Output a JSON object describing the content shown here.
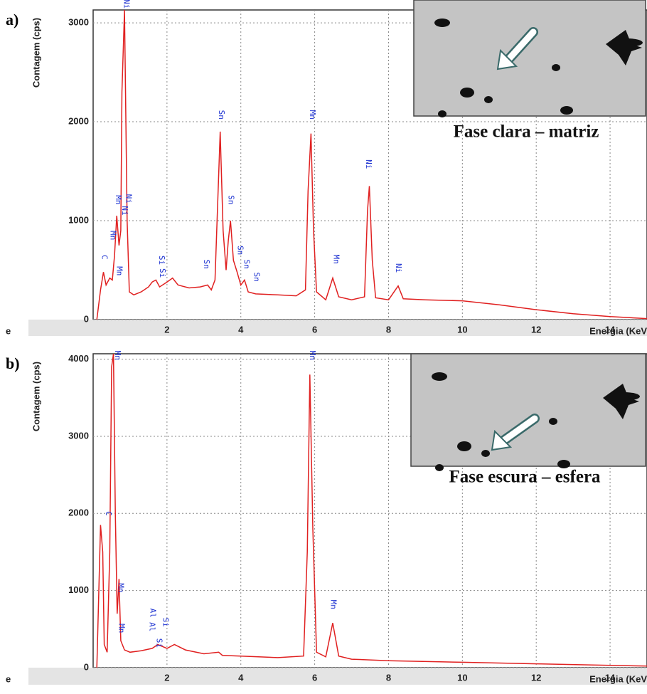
{
  "chart_data": [
    {
      "type": "line",
      "panel_label": "a)",
      "y_label": "Contagem (cps)",
      "x_label": "Energia (KeV",
      "corner_label": "e",
      "inset_caption": "Fase clara – matriz",
      "color": "#e02020",
      "grid": true,
      "xlim": [
        0,
        15
      ],
      "ylim": [
        0,
        3130
      ],
      "xticks": [
        2,
        4,
        6,
        8,
        10,
        12,
        14
      ],
      "yticks": [
        0,
        1000,
        2000,
        3000
      ],
      "x": [
        0.1,
        0.2,
        0.28,
        0.35,
        0.45,
        0.52,
        0.58,
        0.64,
        0.7,
        0.75,
        0.78,
        0.85,
        0.92,
        0.98,
        1.1,
        1.3,
        1.5,
        1.6,
        1.7,
        1.8,
        2.0,
        2.15,
        2.3,
        2.6,
        2.9,
        3.1,
        3.2,
        3.3,
        3.44,
        3.52,
        3.6,
        3.66,
        3.72,
        3.8,
        3.9,
        4.0,
        4.1,
        4.2,
        4.4,
        5.0,
        5.5,
        5.75,
        5.82,
        5.9,
        5.97,
        6.05,
        6.3,
        6.49,
        6.65,
        7.0,
        7.35,
        7.43,
        7.48,
        7.56,
        7.65,
        8.0,
        8.26,
        8.4,
        9,
        10,
        11,
        12,
        13,
        14,
        15
      ],
      "values": [
        0,
        300,
        480,
        350,
        420,
        400,
        650,
        1050,
        750,
        900,
        2300,
        3130,
        1000,
        280,
        250,
        280,
        330,
        380,
        400,
        330,
        380,
        420,
        350,
        320,
        330,
        350,
        300,
        400,
        1900,
        900,
        500,
        800,
        1000,
        600,
        480,
        350,
        400,
        280,
        260,
        250,
        240,
        300,
        1300,
        1880,
        900,
        280,
        200,
        420,
        230,
        200,
        230,
        1100,
        1350,
        600,
        220,
        200,
        340,
        210,
        200,
        190,
        150,
        100,
        60,
        30,
        10
      ],
      "peak_labels": [
        {
          "label": "C",
          "x": 0.3,
          "y": 530
        },
        {
          "label": "Mn",
          "x": 0.53,
          "y": 750
        },
        {
          "label": "Mn",
          "x": 0.7,
          "y": 390
        },
        {
          "label": "Mn",
          "x": 0.67,
          "y": 1110
        },
        {
          "label": "Ni",
          "x": 0.85,
          "y": 1000
        },
        {
          "label": "Ni",
          "x": 0.95,
          "y": 1120
        },
        {
          "label": "Ni",
          "x": 0.9,
          "y": 3090
        },
        {
          "label": "Si",
          "x": 1.85,
          "y": 500
        },
        {
          "label": "Si",
          "x": 1.87,
          "y": 370
        },
        {
          "label": "Sn",
          "x": 3.06,
          "y": 460
        },
        {
          "label": "Sn",
          "x": 3.47,
          "y": 1970
        },
        {
          "label": "Sn",
          "x": 3.73,
          "y": 1110
        },
        {
          "label": "Sn",
          "x": 3.98,
          "y": 600
        },
        {
          "label": "Sn",
          "x": 4.15,
          "y": 460
        },
        {
          "label": "Sn",
          "x": 4.42,
          "y": 330
        },
        {
          "label": "Mn",
          "x": 5.93,
          "y": 1970
        },
        {
          "label": "Mn",
          "x": 6.58,
          "y": 510
        },
        {
          "label": "Ni",
          "x": 7.45,
          "y": 1470
        },
        {
          "label": "Ni",
          "x": 8.26,
          "y": 420
        }
      ]
    },
    {
      "type": "line",
      "panel_label": "b)",
      "y_label": "Contagem (cps)",
      "x_label": "Energia (KeV",
      "corner_label": "e",
      "inset_caption": "Fase escura – esfera",
      "color": "#e02020",
      "grid": true,
      "xlim": [
        0,
        15
      ],
      "ylim": [
        0,
        4070
      ],
      "xticks": [
        2,
        4,
        6,
        8,
        10,
        12,
        14
      ],
      "yticks": [
        0,
        1000,
        2000,
        3000,
        4000
      ],
      "x": [
        0.1,
        0.2,
        0.26,
        0.3,
        0.38,
        0.45,
        0.5,
        0.55,
        0.6,
        0.65,
        0.7,
        0.75,
        0.85,
        1.0,
        1.3,
        1.6,
        1.75,
        2.0,
        2.2,
        2.5,
        3.0,
        3.4,
        3.5,
        4,
        5,
        5.7,
        5.8,
        5.87,
        5.95,
        6.05,
        6.3,
        6.49,
        6.65,
        7,
        8,
        10,
        12,
        14,
        15
      ],
      "values": [
        0,
        1850,
        1500,
        300,
        200,
        1500,
        3900,
        4070,
        2000,
        700,
        1150,
        350,
        230,
        200,
        220,
        250,
        300,
        250,
        300,
        230,
        180,
        200,
        160,
        150,
        130,
        150,
        1500,
        3800,
        1800,
        200,
        140,
        580,
        150,
        110,
        90,
        70,
        50,
        30,
        20
      ],
      "peak_labels": [
        {
          "label": "C",
          "x": 0.4,
          "y": 1870
        },
        {
          "label": "Mn",
          "x": 0.65,
          "y": 3920
        },
        {
          "label": "Mn",
          "x": 0.74,
          "y": 905
        },
        {
          "label": "Mn",
          "x": 0.76,
          "y": 380
        },
        {
          "label": "Al",
          "x": 1.59,
          "y": 400
        },
        {
          "label": "Al",
          "x": 1.61,
          "y": 580
        },
        {
          "label": "Si",
          "x": 1.78,
          "y": 190
        },
        {
          "label": "Si",
          "x": 1.95,
          "y": 460
        },
        {
          "label": "Mn",
          "x": 5.93,
          "y": 3920
        },
        {
          "label": "Mn",
          "x": 6.5,
          "y": 690
        }
      ]
    }
  ]
}
